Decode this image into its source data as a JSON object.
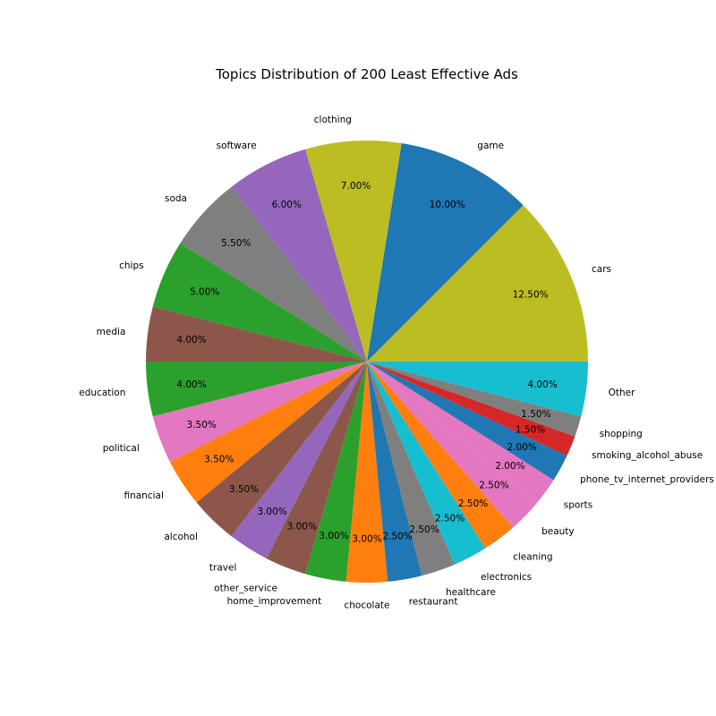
{
  "chart_data": {
    "type": "pie",
    "title": "Topics Distribution of 200 Least Effective Ads",
    "start_angle_deg": 0,
    "direction": "counterclockwise",
    "slices": [
      {
        "label": "cars",
        "value": 12.5,
        "pct_text": "12.50%",
        "color": "#bcbd22"
      },
      {
        "label": "game",
        "value": 10.0,
        "pct_text": "10.00%",
        "color": "#1f77b4"
      },
      {
        "label": "clothing",
        "value": 7.0,
        "pct_text": "7.00%",
        "color": "#bcbd22"
      },
      {
        "label": "software",
        "value": 6.0,
        "pct_text": "6.00%",
        "color": "#9467bd"
      },
      {
        "label": "soda",
        "value": 5.5,
        "pct_text": "5.50%",
        "color": "#7f7f7f"
      },
      {
        "label": "chips",
        "value": 5.0,
        "pct_text": "5.00%",
        "color": "#2ca02c"
      },
      {
        "label": "media",
        "value": 4.0,
        "pct_text": "4.00%",
        "color": "#8c564b"
      },
      {
        "label": "education",
        "value": 4.0,
        "pct_text": "4.00%",
        "color": "#2ca02c"
      },
      {
        "label": "political",
        "value": 3.5,
        "pct_text": "3.50%",
        "color": "#e377c2"
      },
      {
        "label": "financial",
        "value": 3.5,
        "pct_text": "3.50%",
        "color": "#ff7f0e"
      },
      {
        "label": "alcohol",
        "value": 3.5,
        "pct_text": "3.50%",
        "color": "#8c564b"
      },
      {
        "label": "travel",
        "value": 3.0,
        "pct_text": "3.00%",
        "color": "#9467bd"
      },
      {
        "label": "other_service",
        "value": 3.0,
        "pct_text": "3.00%",
        "color": "#8c564b"
      },
      {
        "label": "home_improvement",
        "value": 3.0,
        "pct_text": "3.00%",
        "color": "#2ca02c"
      },
      {
        "label": "chocolate",
        "value": 3.0,
        "pct_text": "3.00%",
        "color": "#ff7f0e"
      },
      {
        "label": "restaurant",
        "value": 2.5,
        "pct_text": "2.50%",
        "color": "#1f77b4"
      },
      {
        "label": "healthcare",
        "value": 2.5,
        "pct_text": "2.50%",
        "color": "#7f7f7f"
      },
      {
        "label": "electronics",
        "value": 2.5,
        "pct_text": "2.50%",
        "color": "#17becf"
      },
      {
        "label": "cleaning",
        "value": 2.5,
        "pct_text": "2.50%",
        "color": "#ff7f0e"
      },
      {
        "label": "beauty",
        "value": 2.5,
        "pct_text": "2.50%",
        "color": "#e377c2"
      },
      {
        "label": "sports",
        "value": 2.0,
        "pct_text": "2.00%",
        "color": "#e377c2"
      },
      {
        "label": "phone_tv_internet_providers",
        "value": 2.0,
        "pct_text": "2.00%",
        "color": "#1f77b4"
      },
      {
        "label": "smoking_alcohol_abuse",
        "value": 1.5,
        "pct_text": "1.50%",
        "color": "#d62728"
      },
      {
        "label": "shopping",
        "value": 1.5,
        "pct_text": "1.50%",
        "color": "#7f7f7f"
      },
      {
        "label": "Other",
        "value": 4.0,
        "pct_text": "4.00%",
        "color": "#17becf"
      }
    ]
  }
}
